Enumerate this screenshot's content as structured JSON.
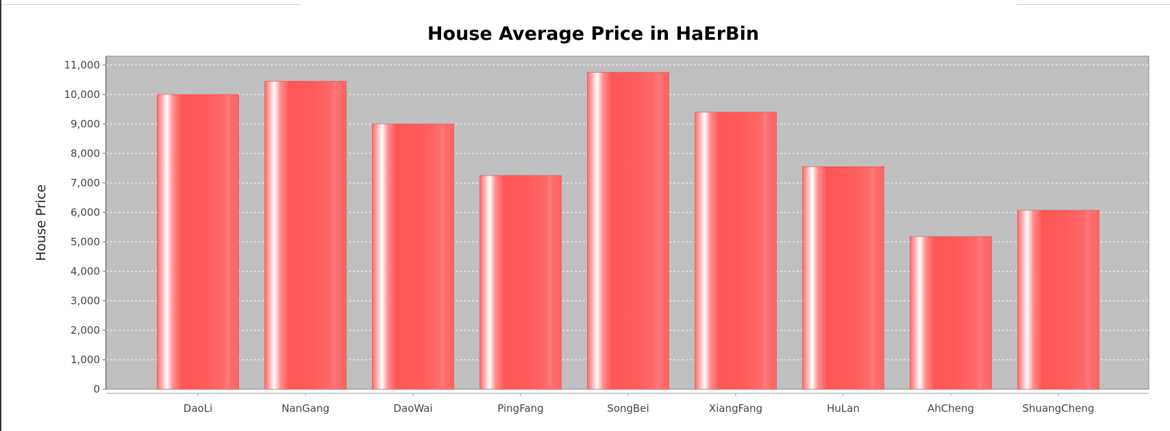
{
  "chart_data": {
    "type": "bar",
    "title": "House Average Price in HaErBin",
    "xlabel": "",
    "ylabel": "House Price",
    "categories": [
      "DaoLi",
      "NanGang",
      "DaoWai",
      "PingFang",
      "SongBei",
      "XiangFang",
      "HuLan",
      "AhCheng",
      "ShuangCheng"
    ],
    "values": [
      10000,
      10450,
      9000,
      7250,
      10750,
      9400,
      7550,
      5180,
      6070
    ],
    "ylim": [
      0,
      11300
    ],
    "yticks": [
      0,
      1000,
      2000,
      3000,
      4000,
      5000,
      6000,
      7000,
      8000,
      9000,
      10000,
      11000
    ],
    "ytick_labels": [
      "0",
      "1,000",
      "2,000",
      "3,000",
      "4,000",
      "5,000",
      "6,000",
      "7,000",
      "8,000",
      "9,000",
      "10,000",
      "11,000"
    ],
    "grid": true,
    "bar_color": "#ff5a5a",
    "plot_background": "#c0c0c0"
  }
}
